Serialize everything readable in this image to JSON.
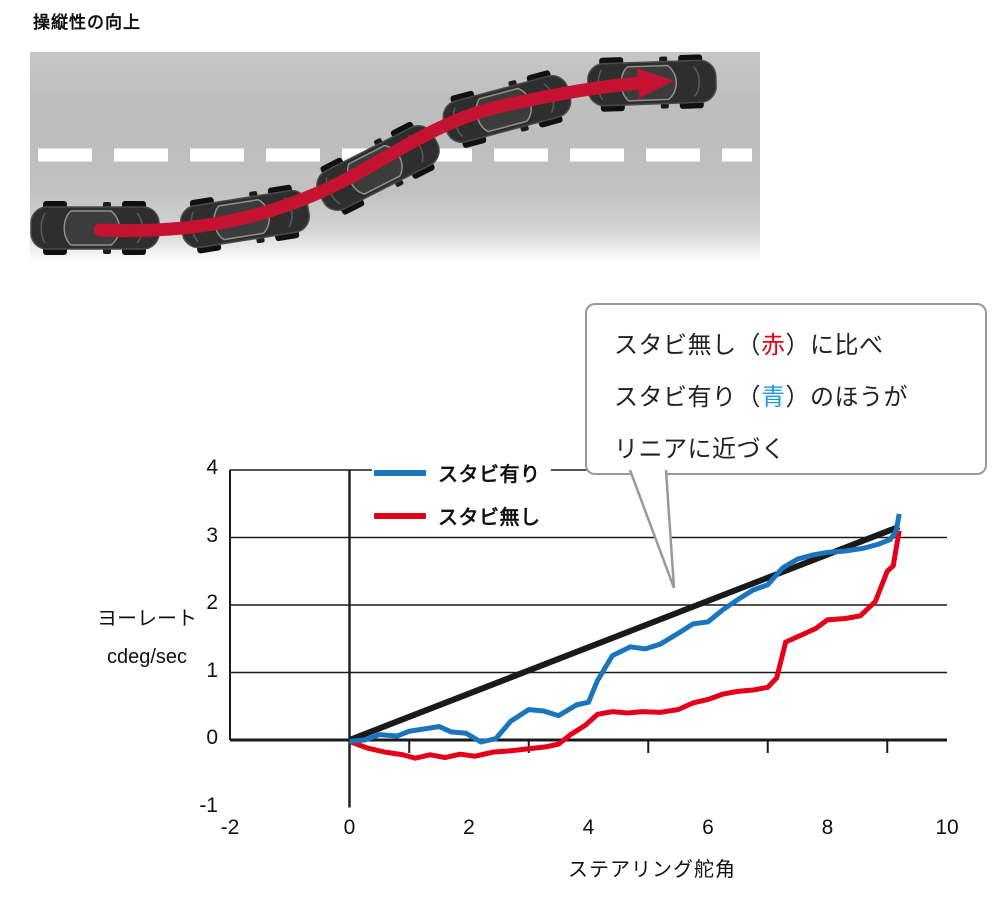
{
  "page": {
    "title": "操縦性の向上"
  },
  "illustration": {
    "description": "lane-change maneuver: five car positions along an S-shaped red trajectory arrow on a gray road with white dashed center line",
    "path_color": "#c41230",
    "car_color": "#2e2e2e",
    "lane_dash_color": "#ffffff"
  },
  "callout": {
    "line1_pre": "スタビ無し（",
    "line1_em": "赤",
    "line1_post": "）に比べ",
    "line2_pre": "スタビ有り（",
    "line2_em": "青",
    "line2_post": "）のほうが",
    "line3": "リニアに近づく",
    "em1_color": "#e50019",
    "em2_color": "#1e9bd7"
  },
  "chart_data": {
    "type": "line",
    "xlabel": "ステアリング舵角",
    "ylabel_line1": "ヨーレート",
    "ylabel_line2": "cdeg/sec",
    "xlim": [
      -2,
      10
    ],
    "ylim": [
      -1,
      4
    ],
    "x_ticks": [
      -2,
      0,
      2,
      4,
      6,
      8,
      10
    ],
    "y_ticks": [
      4,
      3,
      2,
      1,
      0,
      -1
    ],
    "x_minor_ticks": [
      1,
      3,
      5,
      7,
      9
    ],
    "grid_y_values": [
      4,
      3,
      2,
      1,
      0
    ],
    "legend_position": "top-center",
    "series": [
      {
        "name": "スタビ有り",
        "color": "#1b75bc",
        "width": 5,
        "in_legend": true,
        "points": [
          [
            0,
            -0.02
          ],
          [
            0.25,
            0
          ],
          [
            0.5,
            0.08
          ],
          [
            0.8,
            0.06
          ],
          [
            1,
            0.13
          ],
          [
            1.3,
            0.17
          ],
          [
            1.5,
            0.2
          ],
          [
            1.7,
            0.12
          ],
          [
            1.95,
            0.1
          ],
          [
            2.2,
            -0.03
          ],
          [
            2.45,
            0.02
          ],
          [
            2.7,
            0.28
          ],
          [
            3,
            0.45
          ],
          [
            3.25,
            0.43
          ],
          [
            3.5,
            0.36
          ],
          [
            3.8,
            0.52
          ],
          [
            4,
            0.56
          ],
          [
            4.15,
            0.88
          ],
          [
            4.4,
            1.25
          ],
          [
            4.7,
            1.38
          ],
          [
            4.95,
            1.35
          ],
          [
            5.2,
            1.42
          ],
          [
            5.5,
            1.58
          ],
          [
            5.75,
            1.72
          ],
          [
            6,
            1.75
          ],
          [
            6.25,
            1.93
          ],
          [
            6.5,
            2.08
          ],
          [
            6.75,
            2.22
          ],
          [
            7,
            2.3
          ],
          [
            7.25,
            2.55
          ],
          [
            7.5,
            2.68
          ],
          [
            7.75,
            2.74
          ],
          [
            8,
            2.78
          ],
          [
            8.3,
            2.8
          ],
          [
            8.6,
            2.84
          ],
          [
            8.85,
            2.9
          ],
          [
            9.05,
            2.97
          ],
          [
            9.15,
            3.1
          ],
          [
            9.2,
            3.35
          ]
        ]
      },
      {
        "name": "スタビ無し",
        "color": "#e50019",
        "width": 5,
        "in_legend": true,
        "points": [
          [
            0,
            -0.02
          ],
          [
            0.3,
            -0.12
          ],
          [
            0.6,
            -0.18
          ],
          [
            0.9,
            -0.22
          ],
          [
            1.1,
            -0.27
          ],
          [
            1.35,
            -0.22
          ],
          [
            1.6,
            -0.26
          ],
          [
            1.85,
            -0.21
          ],
          [
            2.1,
            -0.24
          ],
          [
            2.4,
            -0.18
          ],
          [
            2.7,
            -0.16
          ],
          [
            3,
            -0.13
          ],
          [
            3.3,
            -0.1
          ],
          [
            3.5,
            -0.06
          ],
          [
            3.7,
            0.08
          ],
          [
            3.95,
            0.22
          ],
          [
            4.15,
            0.38
          ],
          [
            4.4,
            0.42
          ],
          [
            4.65,
            0.4
          ],
          [
            4.9,
            0.42
          ],
          [
            5.2,
            0.41
          ],
          [
            5.5,
            0.45
          ],
          [
            5.75,
            0.55
          ],
          [
            6,
            0.6
          ],
          [
            6.25,
            0.68
          ],
          [
            6.5,
            0.72
          ],
          [
            6.75,
            0.74
          ],
          [
            7,
            0.78
          ],
          [
            7.15,
            0.92
          ],
          [
            7.3,
            1.45
          ],
          [
            7.55,
            1.55
          ],
          [
            7.8,
            1.65
          ],
          [
            8,
            1.78
          ],
          [
            8.3,
            1.8
          ],
          [
            8.55,
            1.84
          ],
          [
            8.8,
            2.05
          ],
          [
            9,
            2.5
          ],
          [
            9.1,
            2.58
          ],
          [
            9.2,
            3.1
          ]
        ]
      },
      {
        "name": "linear_reference",
        "color": "#1a1a1a",
        "width": 6,
        "in_legend": false,
        "points": [
          [
            0,
            0
          ],
          [
            9.2,
            3.16
          ]
        ]
      }
    ]
  }
}
